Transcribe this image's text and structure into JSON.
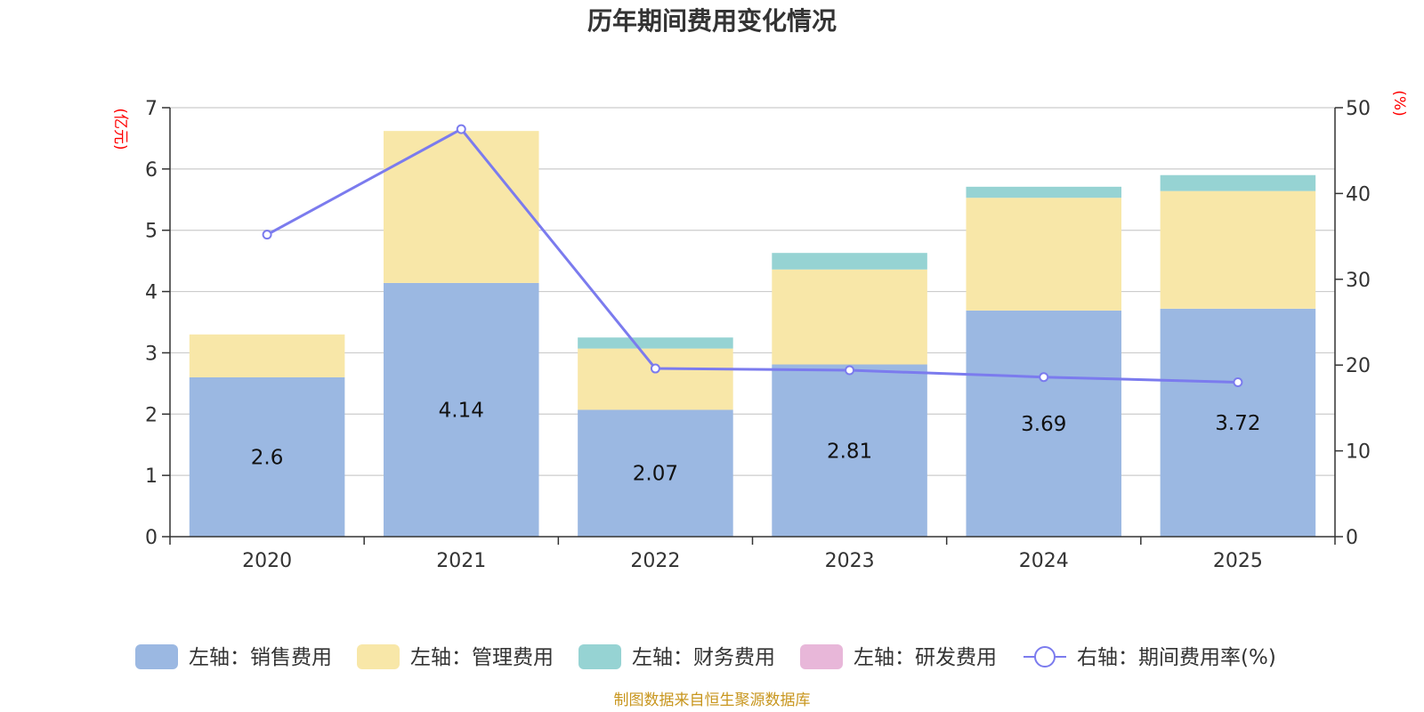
{
  "chart_data": {
    "type": "bar",
    "title": "历年期间费用变化情况",
    "categories": [
      "2020",
      "2021",
      "2022",
      "2023",
      "2024",
      "2025"
    ],
    "y_left": {
      "unit_label": "(亿元)",
      "ylim": [
        0,
        7
      ],
      "ticks": [
        "0",
        "1",
        "2",
        "3",
        "4",
        "5",
        "6",
        "7"
      ]
    },
    "y_right": {
      "unit_label": "(%)",
      "ylim": [
        0,
        50
      ],
      "ticks": [
        "0",
        "10",
        "20",
        "30",
        "40",
        "50"
      ]
    },
    "series": [
      {
        "name": "左轴：销售费用",
        "color": "#9bb8e2",
        "axis": "left",
        "values": [
          2.6,
          4.14,
          2.07,
          2.81,
          3.69,
          3.72
        ],
        "labels": [
          "2.6",
          "4.14",
          "2.07",
          "2.81",
          "3.69",
          "3.72"
        ]
      },
      {
        "name": "左轴：管理费用",
        "color": "#f8e7a8",
        "axis": "left",
        "values": [
          0.7,
          2.48,
          1.0,
          1.55,
          1.84,
          1.92
        ]
      },
      {
        "name": "左轴：财务费用",
        "color": "#96d3d3",
        "axis": "left",
        "values": [
          0.0,
          0.0,
          0.18,
          0.27,
          0.18,
          0.26
        ]
      },
      {
        "name": "左轴：研发费用",
        "color": "#e8b7d9",
        "axis": "left",
        "values": [
          0,
          0,
          0,
          0,
          0,
          0
        ]
      },
      {
        "name": "右轴：期间费用率(%)",
        "color": "#7b7bee",
        "axis": "right",
        "type": "line",
        "values": [
          35.2,
          47.5,
          19.6,
          19.4,
          18.6,
          18.0
        ]
      }
    ],
    "grid": true,
    "legend_position": "bottom",
    "source": "制图数据来自恒生聚源数据库"
  }
}
